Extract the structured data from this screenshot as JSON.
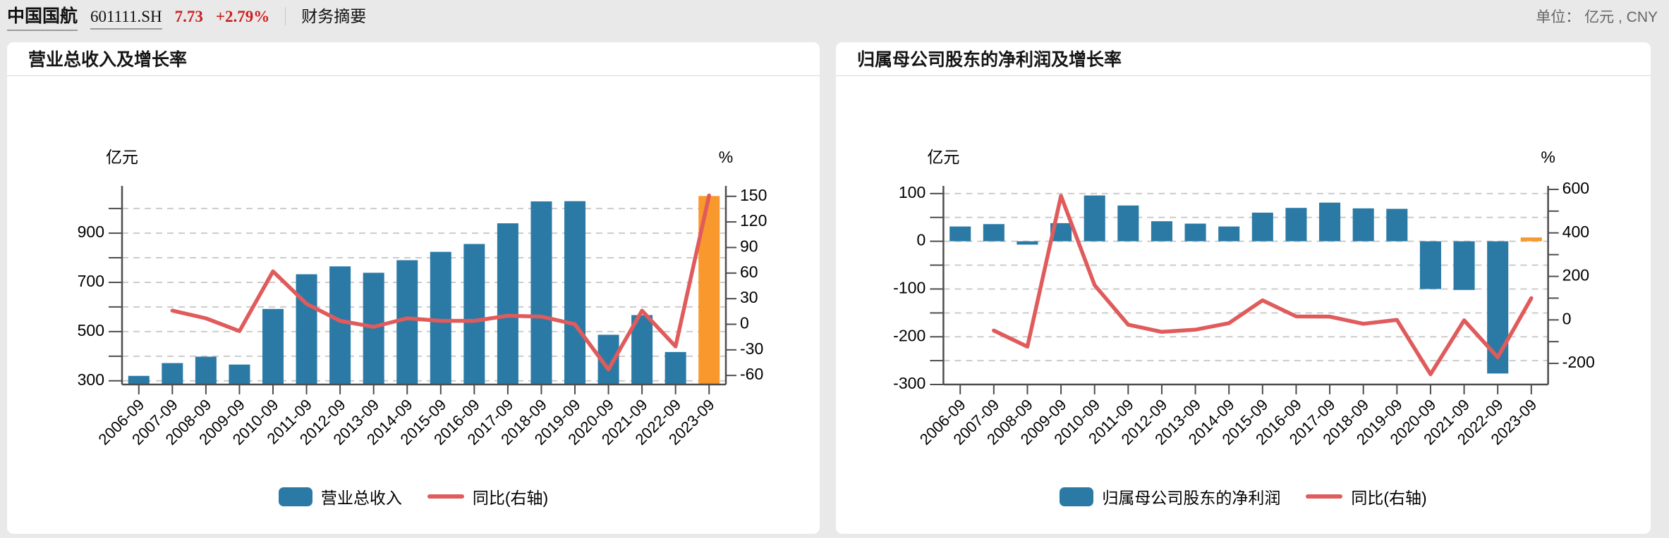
{
  "header": {
    "stock_name": "中国国航",
    "stock_code": "601111.SH",
    "price": "7.73",
    "change_percent": "+2.79%",
    "page_label": "财务摘要",
    "unit_label": "单位： 亿元 , CNY"
  },
  "colors": {
    "quote_red": "#ce2020",
    "bar_blue": "#2b7aa6",
    "highlight_orange": "#f8982d",
    "line_red": "#e05b5b",
    "grid_gray": "#cccccc",
    "axis_gray": "#4d4d4d"
  },
  "chart_data": [
    {
      "type": "bar+line",
      "title": "营业总收入及增长率",
      "categories": [
        "2006-09",
        "2007-09",
        "2008-09",
        "2009-09",
        "2010-09",
        "2011-09",
        "2012-09",
        "2013-09",
        "2014-09",
        "2015-09",
        "2016-09",
        "2017-09",
        "2018-09",
        "2019-09",
        "2020-09",
        "2021-09",
        "2022-09",
        "2023-09"
      ],
      "series": [
        {
          "name": "营业总收入",
          "type": "bar",
          "axis": "left",
          "unit": "亿元",
          "color": "#2b7aa6",
          "highlight": {
            "index": 17,
            "color": "#f8982d"
          },
          "values": [
            320,
            372,
            398,
            366,
            592,
            733,
            765,
            739,
            790,
            824,
            856,
            940,
            1029,
            1030,
            487,
            567,
            417,
            1051
          ]
        },
        {
          "name": "同比(右轴)",
          "type": "line",
          "axis": "right",
          "unit": "%",
          "color": "#e05b5b",
          "values": [
            null,
            16,
            7,
            -8,
            62,
            24,
            4,
            -3,
            7,
            4,
            4,
            10,
            9,
            0,
            -53,
            16,
            -26,
            151
          ]
        }
      ],
      "left_axis": {
        "name": "亿元",
        "min": 285,
        "max": 1092,
        "labeled_ticks": [
          900,
          700,
          500,
          300
        ],
        "minor_ticks": [
          1000,
          800,
          600,
          400
        ]
      },
      "right_axis": {
        "name": "%",
        "min": -70.6,
        "max": 162.2,
        "labeled_ticks": [
          150,
          120,
          90,
          60,
          30,
          0,
          -30,
          -60
        ],
        "minor_ticks": []
      },
      "grid": true,
      "legend_position": "bottom",
      "legend": [
        {
          "label": "营业总收入",
          "swatch": "bar"
        },
        {
          "label": "同比(右轴)",
          "swatch": "line"
        }
      ]
    },
    {
      "type": "bar+line",
      "title": "归属母公司股东的净利润及增长率",
      "categories": [
        "2006-09",
        "2007-09",
        "2008-09",
        "2009-09",
        "2010-09",
        "2011-09",
        "2012-09",
        "2013-09",
        "2014-09",
        "2015-09",
        "2016-09",
        "2017-09",
        "2018-09",
        "2019-09",
        "2020-09",
        "2021-09",
        "2022-09",
        "2023-09"
      ],
      "series": [
        {
          "name": "归属母公司股东的净利润",
          "type": "bar",
          "axis": "left",
          "unit": "亿元",
          "color": "#2b7aa6",
          "highlight": {
            "index": 17,
            "color": "#f8982d"
          },
          "values": [
            31,
            36,
            -7,
            38,
            96,
            75,
            42,
            37,
            31,
            60,
            70,
            81,
            69,
            68,
            -100,
            -102,
            -277,
            8
          ]
        },
        {
          "name": "同比(右轴)",
          "type": "line",
          "axis": "right",
          "unit": "%",
          "color": "#e05b5b",
          "values": [
            null,
            -49,
            -123,
            570,
            160,
            -22,
            -55,
            -45,
            -15,
            90,
            16,
            15,
            -18,
            0,
            -250,
            -2,
            -172,
            100
          ]
        }
      ],
      "left_axis": {
        "name": "亿元",
        "min": -300,
        "max": 116,
        "labeled_ticks": [
          100,
          0,
          -100,
          -200,
          -300
        ],
        "minor_ticks": [
          50,
          -50,
          -150,
          -250
        ]
      },
      "right_axis": {
        "name": "%",
        "min": -297,
        "max": 616,
        "labeled_ticks": [
          600,
          400,
          200,
          0,
          -200
        ],
        "minor_ticks": [
          500,
          300,
          100,
          -100
        ]
      },
      "grid": true,
      "legend_position": "bottom",
      "legend": [
        {
          "label": "归属母公司股东的净利润",
          "swatch": "bar"
        },
        {
          "label": "同比(右轴)",
          "swatch": "line"
        }
      ]
    }
  ]
}
